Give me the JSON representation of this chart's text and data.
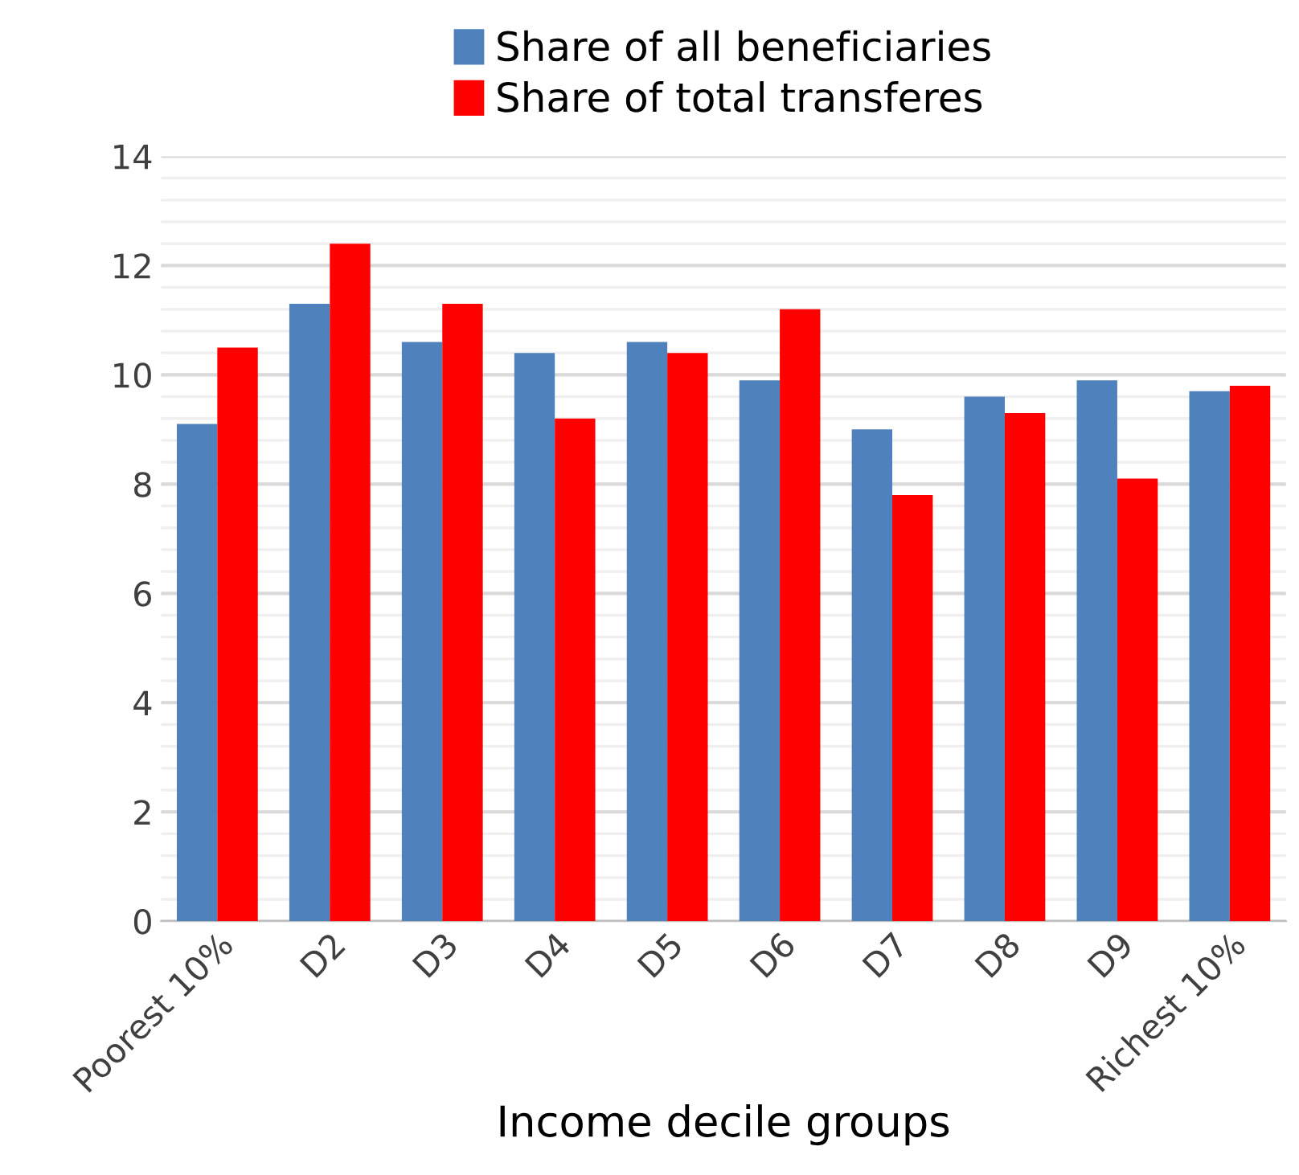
{
  "chart_data": {
    "type": "bar",
    "xlabel": "Income decile groups",
    "categories": [
      "Poorest 10%",
      "D2",
      "D3",
      "D4",
      "D5",
      "D6",
      "D7",
      "D8",
      "D9",
      "Richest 10%"
    ],
    "series": [
      {
        "name": "Share of all beneficiaries",
        "color": "#4f81bd",
        "values": [
          9.1,
          11.3,
          10.6,
          10.4,
          10.6,
          9.9,
          9.0,
          9.6,
          9.9,
          9.7
        ]
      },
      {
        "name": "Share of total transferes",
        "color": "#ff0000",
        "values": [
          10.5,
          12.4,
          11.3,
          9.2,
          10.4,
          11.2,
          7.8,
          9.3,
          8.1,
          9.8
        ]
      }
    ],
    "ylim": [
      0,
      14
    ],
    "yticks": [
      0,
      2,
      4,
      6,
      8,
      10,
      12,
      14
    ],
    "grid": "y",
    "legend": "top"
  }
}
